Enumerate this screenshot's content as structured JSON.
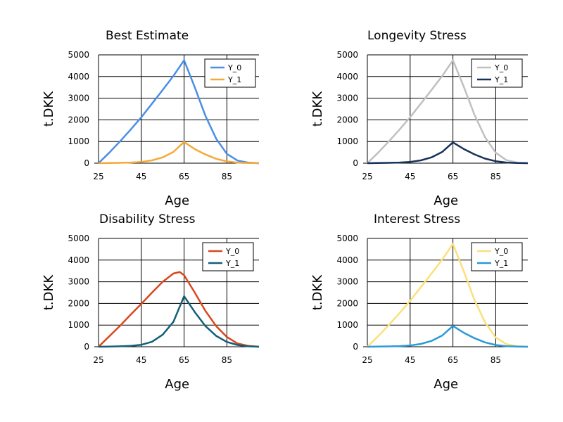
{
  "chart_data": [
    {
      "type": "line",
      "title": "Best Estimate",
      "xlabel": "Age",
      "ylabel": "t.DKK",
      "xlim": [
        25,
        100
      ],
      "ylim": [
        0,
        5000
      ],
      "xticks": [
        "25",
        "45",
        "65",
        "85"
      ],
      "yticks": [
        "0",
        "1000",
        "2000",
        "3000",
        "4000",
        "5000"
      ],
      "grid": true,
      "legend": "top-right",
      "series": [
        {
          "name": "Y_0",
          "color": "#4a8ee6",
          "x": [
            25,
            30,
            35,
            40,
            45,
            50,
            55,
            60,
            65,
            70,
            75,
            80,
            85,
            90,
            95,
            100
          ],
          "y": [
            0,
            480,
            1000,
            1550,
            2120,
            2750,
            3380,
            4030,
            4750,
            3500,
            2180,
            1130,
            430,
            120,
            25,
            0
          ]
        },
        {
          "name": "Y_1",
          "color": "#f5a93a",
          "x": [
            25,
            30,
            35,
            40,
            45,
            50,
            55,
            60,
            65,
            70,
            75,
            80,
            85,
            90,
            95,
            100
          ],
          "y": [
            0,
            5,
            15,
            30,
            60,
            130,
            270,
            520,
            980,
            650,
            400,
            200,
            80,
            25,
            5,
            0
          ]
        }
      ]
    },
    {
      "type": "line",
      "title": "Longevity Stress",
      "xlabel": "Age",
      "ylabel": "t.DKK",
      "xlim": [
        25,
        100
      ],
      "ylim": [
        0,
        5000
      ],
      "xticks": [
        "25",
        "45",
        "65",
        "85"
      ],
      "yticks": [
        "0",
        "1000",
        "2000",
        "3000",
        "4000",
        "5000"
      ],
      "grid": true,
      "legend": "top-right",
      "series": [
        {
          "name": "Y_0",
          "color": "#c0c0c0",
          "x": [
            25,
            30,
            35,
            40,
            45,
            50,
            55,
            60,
            65,
            70,
            75,
            80,
            85,
            90,
            95,
            100
          ],
          "y": [
            0,
            480,
            1000,
            1550,
            2120,
            2750,
            3380,
            4030,
            4750,
            3550,
            2250,
            1200,
            480,
            140,
            30,
            0
          ]
        },
        {
          "name": "Y_1",
          "color": "#17325a",
          "x": [
            25,
            30,
            35,
            40,
            45,
            50,
            55,
            60,
            65,
            70,
            75,
            80,
            85,
            90,
            95,
            100
          ],
          "y": [
            0,
            5,
            15,
            30,
            60,
            130,
            270,
            520,
            960,
            660,
            410,
            210,
            90,
            30,
            8,
            0
          ]
        }
      ]
    },
    {
      "type": "line",
      "title": "Disability Stress",
      "xlabel": "Age",
      "ylabel": "t.DKK",
      "xlim": [
        25,
        100
      ],
      "ylim": [
        0,
        5000
      ],
      "xticks": [
        "25",
        "45",
        "65",
        "85"
      ],
      "yticks": [
        "0",
        "1000",
        "2000",
        "3000",
        "4000",
        "5000"
      ],
      "grid": true,
      "legend": "top-right",
      "series": [
        {
          "name": "Y_0",
          "color": "#d9481c",
          "x": [
            25,
            30,
            35,
            40,
            45,
            50,
            55,
            60,
            63,
            65,
            70,
            75,
            80,
            85,
            90,
            95,
            100
          ],
          "y": [
            0,
            480,
            960,
            1480,
            1980,
            2500,
            3000,
            3380,
            3450,
            3300,
            2500,
            1650,
            950,
            450,
            150,
            40,
            0
          ]
        },
        {
          "name": "Y_1",
          "color": "#145f78",
          "x": [
            25,
            30,
            35,
            40,
            45,
            50,
            55,
            60,
            65,
            70,
            75,
            80,
            85,
            90,
            95,
            100
          ],
          "y": [
            0,
            8,
            20,
            40,
            90,
            230,
            560,
            1150,
            2330,
            1600,
            950,
            500,
            220,
            80,
            20,
            0
          ]
        }
      ]
    },
    {
      "type": "line",
      "title": "Interest Stress",
      "xlabel": "Age",
      "ylabel": "t.DKK",
      "xlim": [
        25,
        100
      ],
      "ylim": [
        0,
        5000
      ],
      "xticks": [
        "25",
        "45",
        "65",
        "85"
      ],
      "yticks": [
        "0",
        "1000",
        "2000",
        "3000",
        "4000",
        "5000"
      ],
      "grid": true,
      "legend": "top-right",
      "series": [
        {
          "name": "Y_0",
          "color": "#fbe07a",
          "x": [
            25,
            30,
            35,
            40,
            45,
            50,
            55,
            60,
            65,
            70,
            75,
            80,
            85,
            90,
            95,
            100
          ],
          "y": [
            0,
            480,
            1000,
            1550,
            2120,
            2750,
            3380,
            4030,
            4750,
            3500,
            2180,
            1130,
            430,
            120,
            25,
            0
          ]
        },
        {
          "name": "Y_1",
          "color": "#2a9ad8",
          "x": [
            25,
            30,
            35,
            40,
            45,
            50,
            55,
            60,
            65,
            70,
            75,
            80,
            85,
            90,
            95,
            100
          ],
          "y": [
            0,
            5,
            15,
            30,
            60,
            130,
            270,
            520,
            960,
            650,
            400,
            200,
            80,
            25,
            5,
            0
          ]
        }
      ]
    }
  ]
}
